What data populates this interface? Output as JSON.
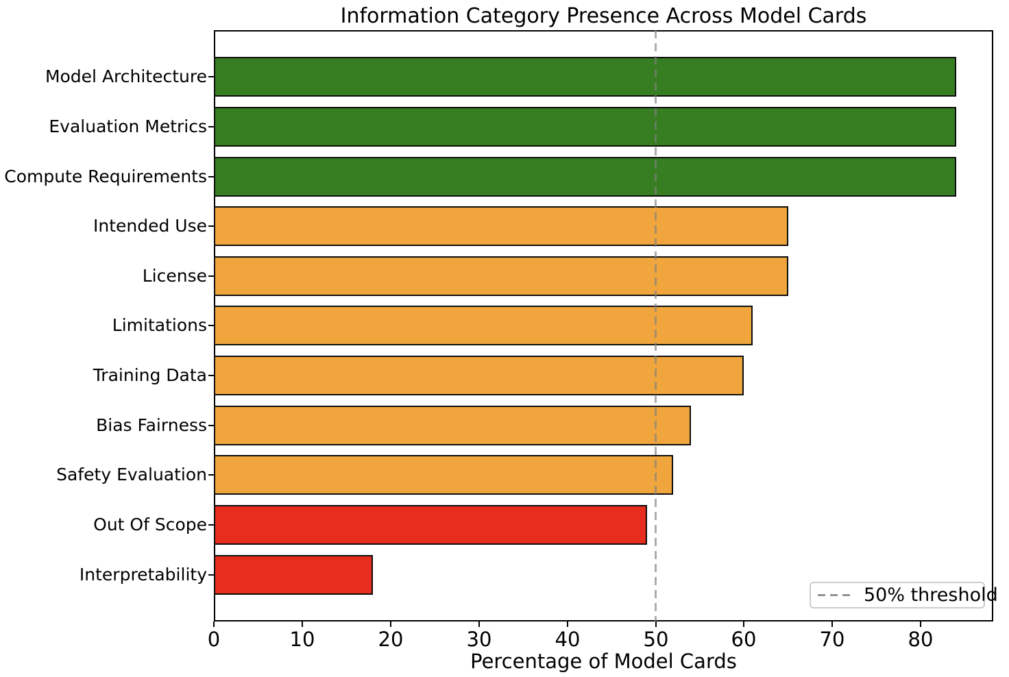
{
  "chart_data": {
    "type": "bar",
    "orientation": "horizontal",
    "title": "Information Category Presence Across Model Cards",
    "xlabel": "Percentage of Model Cards",
    "ylabel": "",
    "categories": [
      "Model Architecture",
      "Evaluation Metrics",
      "Compute Requirements",
      "Intended Use",
      "License",
      "Limitations",
      "Training Data",
      "Bias Fairness",
      "Safety Evaluation",
      "Out Of Scope",
      "Interpretability"
    ],
    "values": [
      84,
      84,
      84,
      65,
      65,
      61,
      60,
      54,
      52,
      49,
      18
    ],
    "bar_colors": [
      "#377e22",
      "#377e22",
      "#377e22",
      "#f0a63c",
      "#f0a63c",
      "#f0a63c",
      "#f0a63c",
      "#f0a63c",
      "#f0a63c",
      "#e62d1e",
      "#e62d1e"
    ],
    "bar_edge_color": "#0d0d0d",
    "xlim": [
      0,
      88.2
    ],
    "xticks": [
      0,
      10,
      20,
      30,
      40,
      50,
      60,
      70,
      80
    ],
    "grid": false,
    "threshold_line": {
      "x": 50,
      "style": "dashed",
      "color": "#acacac"
    },
    "legend": {
      "position": "lower-right",
      "entries": [
        {
          "label": "50% threshold",
          "style": "dashed",
          "color": "#acacac"
        }
      ]
    }
  }
}
